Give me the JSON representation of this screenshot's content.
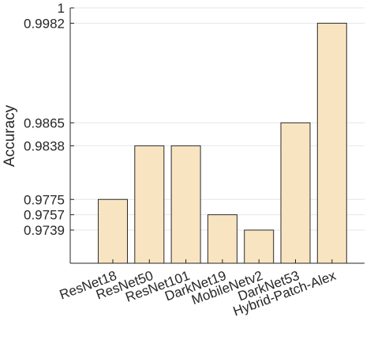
{
  "chart_data": {
    "type": "bar",
    "ylabel": "Accuracy",
    "categories": [
      "ResNet18",
      "ResNet50",
      "ResNet101",
      "DarkNet19",
      "MobileNetv2",
      "DarkNet53",
      "Hybrid-Patch-Alex"
    ],
    "values": [
      0.9775,
      0.9838,
      0.9838,
      0.9757,
      0.9739,
      0.9865,
      0.9982
    ],
    "ylim": [
      0.97,
      1.0
    ],
    "yticks": [
      0.9739,
      0.9757,
      0.9775,
      0.9838,
      0.9865,
      0.9982,
      1
    ],
    "ytick_labels": [
      "0.9739",
      "0.9757",
      "0.9775",
      "0.9838",
      "0.9865",
      "0.9982",
      "1"
    ],
    "grid": "y",
    "bar_color": "#f8e4c1",
    "bar_edge_color": "#2b2b2b"
  }
}
